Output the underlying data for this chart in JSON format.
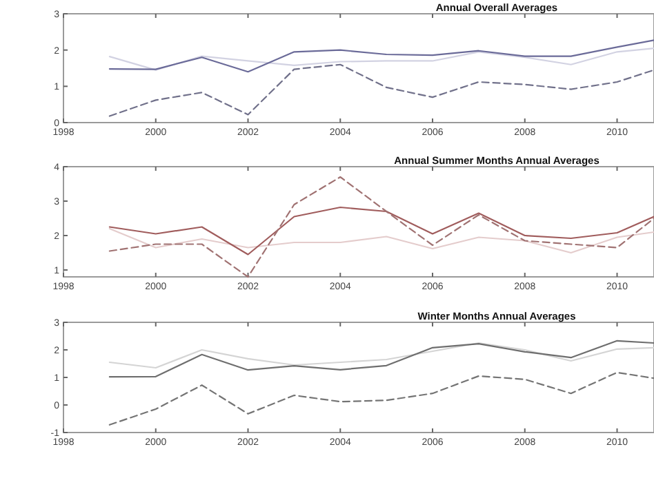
{
  "chart_data": [
    {
      "type": "line",
      "title": "Annual Overall Averages",
      "xlim": [
        1998,
        2010.8
      ],
      "xticks": [
        1998,
        2000,
        2002,
        2004,
        2006,
        2008,
        2010
      ],
      "ylim": [
        0,
        3
      ],
      "yticks": [
        0,
        1,
        2,
        3
      ],
      "grid": false,
      "x": [
        1999,
        2000,
        2001,
        2002,
        2003,
        2004,
        2005,
        2006,
        2007,
        2008,
        2009,
        2010,
        2010.8
      ],
      "series": [
        {
          "color": "#d2d2e2",
          "line_style": "solid",
          "values": [
            1.82,
            1.45,
            1.83,
            1.7,
            1.58,
            1.68,
            1.7,
            1.7,
            1.95,
            1.8,
            1.6,
            1.95,
            2.05
          ]
        },
        {
          "color": "#6a6a98",
          "line_style": "solid",
          "values": [
            1.48,
            1.47,
            1.8,
            1.4,
            1.95,
            2.0,
            1.88,
            1.86,
            1.98,
            1.83,
            1.83,
            2.08,
            2.27
          ]
        },
        {
          "color": "#70708a",
          "line_style": "dashed",
          "values": [
            0.18,
            0.62,
            0.83,
            0.22,
            1.47,
            1.6,
            0.97,
            0.7,
            1.12,
            1.05,
            0.92,
            1.12,
            1.45
          ]
        }
      ]
    },
    {
      "type": "line",
      "title": "Annual Summer Months Annual Averages",
      "xlim": [
        1998,
        2010.8
      ],
      "xticks": [
        1998,
        2000,
        2002,
        2004,
        2006,
        2008,
        2010
      ],
      "ylim": [
        0.8,
        4
      ],
      "yticks": [
        1,
        2,
        3,
        4
      ],
      "grid": false,
      "x": [
        1999,
        2000,
        2001,
        2002,
        2003,
        2004,
        2005,
        2006,
        2007,
        2008,
        2009,
        2010,
        2010.8
      ],
      "series": [
        {
          "color": "#e4cccc",
          "line_style": "solid",
          "values": [
            2.2,
            1.65,
            1.9,
            1.65,
            1.8,
            1.8,
            1.97,
            1.62,
            1.95,
            1.85,
            1.5,
            1.95,
            2.1
          ]
        },
        {
          "color": "#a05c5c",
          "line_style": "solid",
          "values": [
            2.25,
            2.05,
            2.25,
            1.45,
            2.55,
            2.82,
            2.7,
            2.05,
            2.65,
            2.0,
            1.92,
            2.08,
            2.55
          ]
        },
        {
          "color": "#a07272",
          "line_style": "dashed",
          "values": [
            1.55,
            1.75,
            1.75,
            0.8,
            2.9,
            3.7,
            2.7,
            1.72,
            2.6,
            1.85,
            1.75,
            1.65,
            2.5
          ]
        }
      ]
    },
    {
      "type": "line",
      "title": "Winter Months Annual Averages",
      "xlim": [
        1998,
        2010.8
      ],
      "xticks": [
        1998,
        2000,
        2002,
        2004,
        2006,
        2008,
        2010
      ],
      "ylim": [
        -1,
        3
      ],
      "yticks": [
        -1,
        0,
        1,
        2,
        3
      ],
      "grid": false,
      "x": [
        1999,
        2000,
        2001,
        2002,
        2003,
        2004,
        2005,
        2006,
        2007,
        2008,
        2009,
        2010,
        2010.8
      ],
      "series": [
        {
          "color": "#d4d4d4",
          "line_style": "solid",
          "values": [
            1.55,
            1.35,
            2.0,
            1.68,
            1.45,
            1.55,
            1.65,
            1.95,
            2.25,
            2.0,
            1.6,
            2.03,
            2.08
          ]
        },
        {
          "color": "#6e6e6e",
          "line_style": "solid",
          "values": [
            1.02,
            1.03,
            1.83,
            1.27,
            1.42,
            1.28,
            1.43,
            2.08,
            2.22,
            1.93,
            1.72,
            2.33,
            2.25
          ]
        },
        {
          "color": "#747474",
          "line_style": "dashed",
          "values": [
            -0.72,
            -0.15,
            0.72,
            -0.32,
            0.35,
            0.12,
            0.17,
            0.42,
            1.05,
            0.93,
            0.42,
            1.18,
            0.97
          ]
        }
      ]
    }
  ]
}
